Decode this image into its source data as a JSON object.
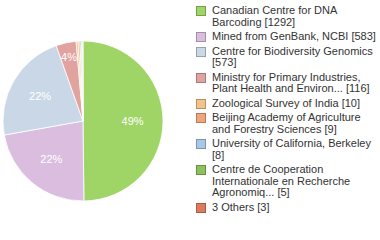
{
  "chart_data": {
    "type": "pie",
    "categories": [
      "Canadian Centre for DNA Barcoding [1292]",
      "Mined from GenBank, NCBI [583]",
      "Centre for Biodiversity Genomics [573]",
      "Ministry for Primary Industries, Plant Health and Environ... [116]",
      "Zoological Survey of India [10]",
      "Beijing Academy of Agriculture and Forestry Sciences [9]",
      "University of California, Berkeley [8]",
      "Centre de Cooperation Internationale en Recherche Agronomiq... [5]",
      "3 Others [3]"
    ],
    "values": [
      49,
      22,
      22,
      4,
      0.4,
      0.35,
      0.3,
      0.2,
      0.1
    ],
    "value_labels": [
      "49%",
      "22%",
      "22%",
      "4%",
      null,
      null,
      null,
      null,
      null
    ],
    "colors": [
      "#9fd466",
      "#dbbde0",
      "#c9d7e6",
      "#e0a3a0",
      "#f2c48c",
      "#f0a57a",
      "#a9c7e6",
      "#8cc25e",
      "#e07a5f"
    ],
    "data_labels": true,
    "legend": "right"
  }
}
